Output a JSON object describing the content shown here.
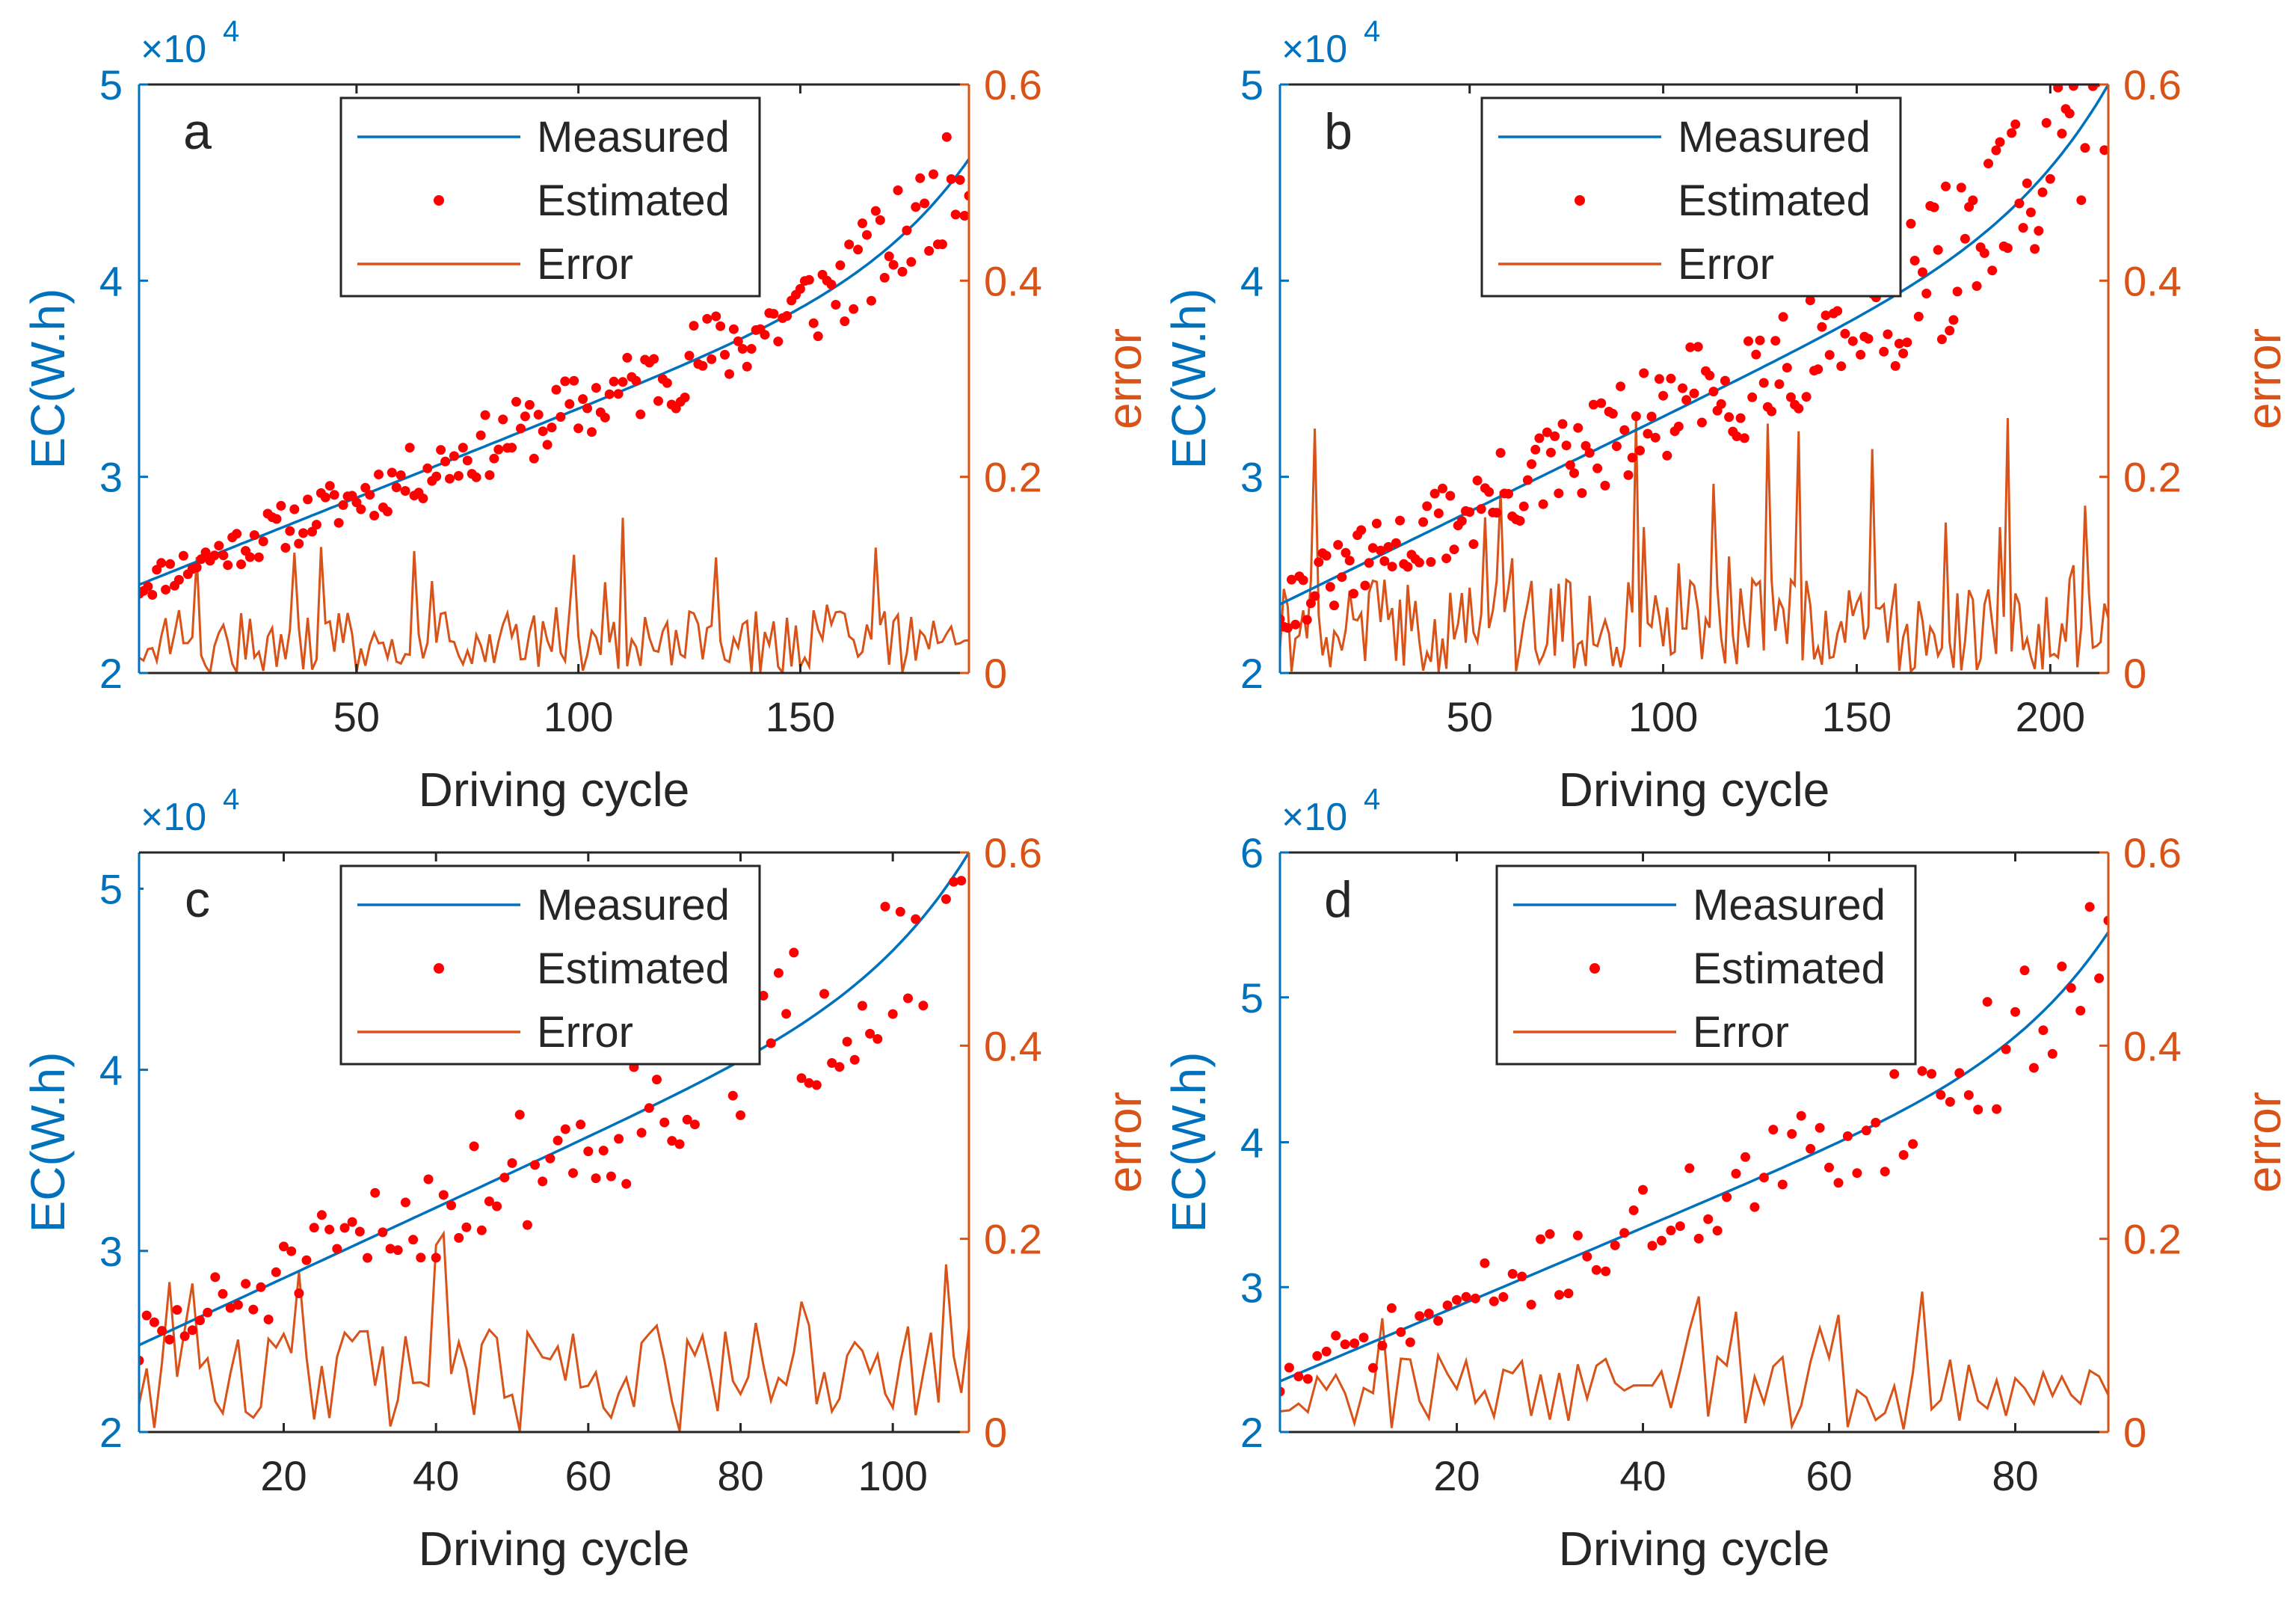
{
  "colors": {
    "measured": "#0072BD",
    "estimated": "#FF0000",
    "error": "#D95319",
    "axis_left": "#0072BD",
    "axis_right": "#D95319",
    "frame": "#262626"
  },
  "legend": {
    "measured": "Measured",
    "estimated": "Estimated",
    "error": "Error"
  },
  "chart_data": [
    {
      "panel_label": "a",
      "type": "line+scatter",
      "xlabel": "Driving cycle",
      "ylabel": "EC(W.h)",
      "ylabel_right": "error",
      "y_exponent": "×10",
      "y_exponent_power": "4",
      "xlim": [
        1,
        188
      ],
      "ylim": [
        2,
        5
      ],
      "ylim_right": [
        0,
        0.6
      ],
      "xticks": [
        "50",
        "100",
        "150"
      ],
      "xtick_values": [
        50,
        100,
        150
      ],
      "yticks": [
        "2",
        "3",
        "4",
        "5"
      ],
      "ytick_values": [
        2,
        3,
        4,
        5
      ],
      "yticks_right": [
        "0",
        "0.2",
        "0.4",
        "0.6"
      ],
      "ytick_right_values": [
        0,
        0.2,
        0.4,
        0.6
      ],
      "legend_position": "top-center",
      "measured": {
        "n": 188,
        "range": [
          2.45,
          4.62
        ]
      },
      "estimated": {
        "n": 188,
        "noise": 0.18,
        "seed": 11
      },
      "error": {
        "n": 188,
        "mean": 0.04,
        "spikes": 0.13,
        "seed": 21
      }
    },
    {
      "panel_label": "b",
      "type": "line+scatter",
      "xlabel": "Driving cycle",
      "ylabel": "EC(W.h)",
      "ylabel_right": "error",
      "y_exponent": "×10",
      "y_exponent_power": "4",
      "xlim": [
        1,
        215
      ],
      "ylim": [
        2,
        5
      ],
      "ylim_right": [
        0,
        0.6
      ],
      "xticks": [
        "50",
        "100",
        "150",
        "200"
      ],
      "xtick_values": [
        50,
        100,
        150,
        200
      ],
      "yticks": [
        "2",
        "3",
        "4",
        "5"
      ],
      "ytick_values": [
        2,
        3,
        4,
        5
      ],
      "yticks_right": [
        "0",
        "0.2",
        "0.4",
        "0.6"
      ],
      "ytick_right_values": [
        0,
        0.2,
        0.4,
        0.6
      ],
      "legend_position": "top-center",
      "measured": {
        "n": 215,
        "range": [
          2.35,
          5.0
        ]
      },
      "estimated": {
        "n": 215,
        "noise": 0.3,
        "seed": 31
      },
      "error": {
        "n": 215,
        "mean": 0.06,
        "spikes": 0.22,
        "seed": 41
      }
    },
    {
      "panel_label": "c",
      "type": "line+scatter",
      "xlabel": "Driving cycle",
      "ylabel": "EC(W.h)",
      "ylabel_right": "error",
      "y_exponent": "×10",
      "y_exponent_power": "4",
      "xlim": [
        1,
        110
      ],
      "ylim": [
        2,
        5.2
      ],
      "ylim_right": [
        0,
        0.6
      ],
      "xticks": [
        "20",
        "40",
        "60",
        "80",
        "100"
      ],
      "xtick_values": [
        20,
        40,
        60,
        80,
        100
      ],
      "yticks": [
        "2",
        "3",
        "4",
        "5"
      ],
      "ytick_values": [
        2,
        3,
        4,
        5
      ],
      "yticks_right": [
        "0",
        "0.2",
        "0.4",
        "0.6"
      ],
      "ytick_right_values": [
        0,
        0.2,
        0.4,
        0.6
      ],
      "legend_position": "top-center",
      "measured": {
        "n": 110,
        "range": [
          2.48,
          5.2
        ]
      },
      "estimated": {
        "n": 110,
        "noise": 0.35,
        "seed": 51
      },
      "error": {
        "n": 110,
        "mean": 0.07,
        "spikes": 0.2,
        "seed": 61
      }
    },
    {
      "panel_label": "d",
      "type": "line+scatter",
      "xlabel": "Driving cycle",
      "ylabel": "EC(W.h)",
      "ylabel_right": "error",
      "y_exponent": "×10",
      "y_exponent_power": "4",
      "xlim": [
        1,
        90
      ],
      "ylim": [
        2,
        6
      ],
      "ylim_right": [
        0,
        0.6
      ],
      "xticks": [
        "20",
        "40",
        "60",
        "80"
      ],
      "xtick_values": [
        20,
        40,
        60,
        80
      ],
      "yticks": [
        "2",
        "3",
        "4",
        "5",
        "6"
      ],
      "ytick_values": [
        2,
        3,
        4,
        5,
        6
      ],
      "yticks_right": [
        "0",
        "0.2",
        "0.4",
        "0.6"
      ],
      "ytick_right_values": [
        0,
        0.2,
        0.4,
        0.6
      ],
      "legend_position": "top-center",
      "measured": {
        "n": 90,
        "range": [
          2.35,
          5.45
        ]
      },
      "estimated": {
        "n": 90,
        "noise": 0.3,
        "seed": 71
      },
      "error": {
        "n": 90,
        "mean": 0.05,
        "spikes": 0.12,
        "seed": 81
      }
    }
  ]
}
